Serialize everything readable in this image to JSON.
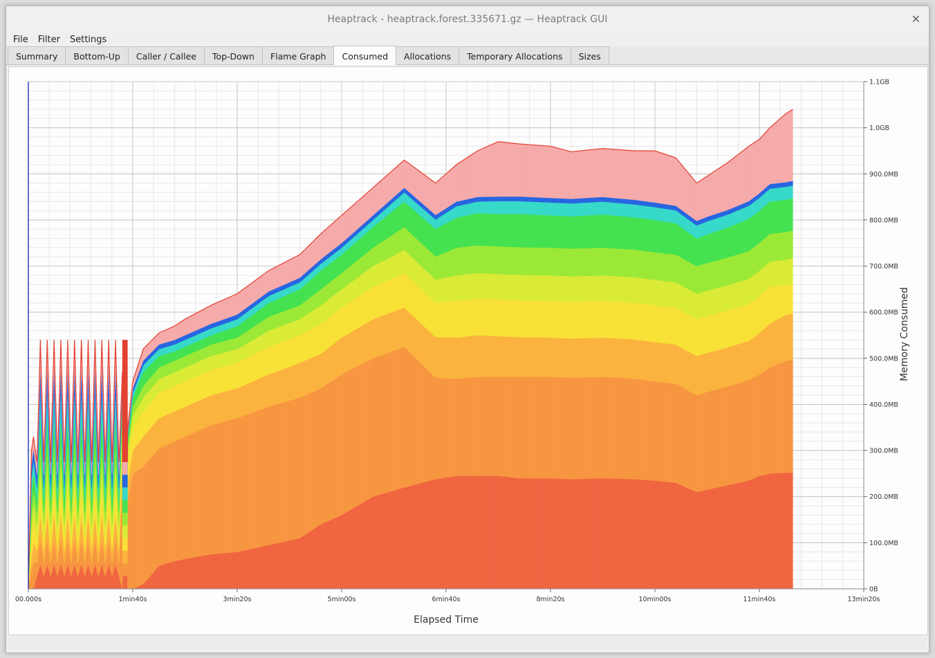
{
  "window": {
    "title": "Heaptrack - heaptrack.forest.335671.gz — Heaptrack GUI",
    "close_glyph": "✕"
  },
  "menu": [
    "File",
    "Filter",
    "Settings"
  ],
  "tabs": [
    {
      "label": "Summary",
      "active": false
    },
    {
      "label": "Bottom-Up",
      "active": false
    },
    {
      "label": "Caller / Callee",
      "active": false
    },
    {
      "label": "Top-Down",
      "active": false
    },
    {
      "label": "Flame Graph",
      "active": false
    },
    {
      "label": "Consumed",
      "active": true
    },
    {
      "label": "Allocations",
      "active": false
    },
    {
      "label": "Temporary Allocations",
      "active": false
    },
    {
      "label": "Sizes",
      "active": false
    }
  ],
  "chart_data": {
    "type": "area",
    "stacked": true,
    "xlabel": "Elapsed Time",
    "ylabel": "Memory Consumed",
    "x_unit": "seconds",
    "y_unit": "MB",
    "xlim": [
      0,
      800
    ],
    "ylim": [
      0,
      1100
    ],
    "x_ticks": [
      {
        "value": 0,
        "label": "00.000s"
      },
      {
        "value": 100,
        "label": "1min40s"
      },
      {
        "value": 200,
        "label": "3min20s"
      },
      {
        "value": 300,
        "label": "5min00s"
      },
      {
        "value": 400,
        "label": "6min40s"
      },
      {
        "value": 500,
        "label": "8min20s"
      },
      {
        "value": 600,
        "label": "10min00s"
      },
      {
        "value": 700,
        "label": "11min40s"
      },
      {
        "value": 800,
        "label": "13min20s"
      }
    ],
    "y_ticks": [
      {
        "value": 0,
        "label": "0B"
      },
      {
        "value": 100,
        "label": "100.0MB"
      },
      {
        "value": 200,
        "label": "200.0MB"
      },
      {
        "value": 300,
        "label": "300.0MB"
      },
      {
        "value": 400,
        "label": "400.0MB"
      },
      {
        "value": 500,
        "label": "500.0MB"
      },
      {
        "value": 600,
        "label": "600.0MB"
      },
      {
        "value": 700,
        "label": "700.0MB"
      },
      {
        "value": 800,
        "label": "800.0MB"
      },
      {
        "value": 900,
        "label": "900.0MB"
      },
      {
        "value": 1000,
        "label": "1.0GB"
      },
      {
        "value": 1100,
        "label": "1.1GB"
      }
    ],
    "grid": true,
    "x": [
      0,
      3,
      5,
      90,
      95,
      100,
      110,
      125,
      140,
      150,
      175,
      200,
      230,
      260,
      280,
      300,
      330,
      360,
      390,
      410,
      430,
      450,
      470,
      500,
      520,
      550,
      580,
      600,
      620,
      640,
      650,
      670,
      690,
      700,
      710,
      725,
      732
    ],
    "top_total": [
      0,
      320,
      330,
      500,
      350,
      420,
      490,
      480,
      470,
      480,
      500,
      520,
      580,
      610,
      660,
      680,
      730,
      810,
      870,
      920,
      950,
      960,
      965,
      960,
      950,
      955,
      950,
      950,
      935,
      890,
      900,
      920,
      945,
      965,
      990,
      1030,
      1040
    ],
    "spiky_region": {
      "x_range": [
        5,
        95
      ],
      "min": 150,
      "max": 540
    },
    "series": [
      {
        "color": "#f0603a",
        "values": [
          0,
          0,
          0,
          0,
          0,
          0,
          10,
          50,
          60,
          65,
          75,
          80,
          95,
          110,
          140,
          160,
          200,
          220,
          238,
          245,
          245,
          245,
          240,
          240,
          238,
          240,
          238,
          235,
          230,
          210,
          215,
          225,
          235,
          245,
          250,
          252,
          252
        ]
      },
      {
        "color": "#f7923a",
        "values": [
          0,
          40,
          60,
          220,
          190,
          250,
          255,
          255,
          260,
          265,
          280,
          290,
          300,
          305,
          295,
          305,
          300,
          305,
          220,
          210,
          215,
          215,
          220,
          220,
          220,
          220,
          218,
          215,
          215,
          210,
          212,
          214,
          218,
          220,
          230,
          242,
          245
        ]
      },
      {
        "color": "#fbb038",
        "values": [
          0,
          30,
          40,
          60,
          40,
          50,
          65,
          65,
          65,
          65,
          65,
          65,
          70,
          75,
          75,
          80,
          85,
          85,
          88,
          90,
          90,
          88,
          86,
          85,
          85,
          85,
          85,
          85,
          85,
          85,
          85,
          85,
          85,
          90,
          95,
          100,
          100
        ]
      },
      {
        "color": "#f8e030",
        "values": [
          0,
          40,
          50,
          60,
          45,
          50,
          55,
          55,
          55,
          55,
          55,
          55,
          60,
          60,
          65,
          65,
          70,
          75,
          75,
          80,
          80,
          80,
          80,
          80,
          80,
          80,
          80,
          80,
          80,
          80,
          80,
          80,
          80,
          80,
          80,
          65,
          65
        ]
      },
      {
        "color": "#d8ea30",
        "values": [
          0,
          30,
          35,
          30,
          20,
          25,
          30,
          30,
          30,
          30,
          30,
          30,
          35,
          35,
          40,
          40,
          45,
          50,
          50,
          55,
          55,
          55,
          55,
          55,
          55,
          55,
          55,
          55,
          55,
          55,
          55,
          55,
          55,
          55,
          55,
          55,
          55
        ]
      },
      {
        "color": "#98e830",
        "values": [
          0,
          30,
          30,
          30,
          15,
          20,
          25,
          25,
          25,
          25,
          25,
          25,
          30,
          30,
          35,
          35,
          40,
          50,
          50,
          60,
          60,
          60,
          60,
          60,
          60,
          60,
          60,
          60,
          60,
          60,
          60,
          60,
          60,
          60,
          60,
          60,
          60
        ]
      },
      {
        "color": "#3ee04a",
        "values": [
          0,
          40,
          40,
          30,
          15,
          20,
          30,
          25,
          20,
          20,
          20,
          25,
          30,
          35,
          40,
          40,
          45,
          55,
          60,
          65,
          70,
          70,
          72,
          70,
          70,
          72,
          70,
          70,
          68,
          60,
          62,
          65,
          70,
          70,
          70,
          70,
          70
        ]
      },
      {
        "color": "#30d8c8",
        "values": [
          0,
          30,
          25,
          10,
          5,
          10,
          15,
          15,
          15,
          15,
          15,
          15,
          15,
          15,
          15,
          15,
          15,
          20,
          20,
          25,
          25,
          28,
          28,
          28,
          28,
          28,
          28,
          28,
          28,
          28,
          28,
          28,
          28,
          28,
          28,
          28,
          28
        ]
      },
      {
        "color": "#2060e0",
        "values": [
          0,
          30,
          25,
          10,
          5,
          10,
          10,
          10,
          10,
          10,
          10,
          10,
          10,
          10,
          10,
          10,
          10,
          10,
          10,
          10,
          10,
          10,
          10,
          10,
          10,
          10,
          10,
          10,
          10,
          10,
          10,
          10,
          10,
          10,
          10,
          10,
          10
        ]
      },
      {
        "color": "#f6a7a7",
        "values": [
          0,
          30,
          25,
          20,
          10,
          15,
          25,
          25,
          30,
          35,
          40,
          45,
          45,
          50,
          55,
          60,
          60,
          60,
          69,
          80,
          100,
          119,
          114,
          112,
          102,
          105,
          106,
          112,
          104,
          82,
          88,
          103,
          119,
          117,
          122,
          148,
          155
        ]
      }
    ]
  }
}
